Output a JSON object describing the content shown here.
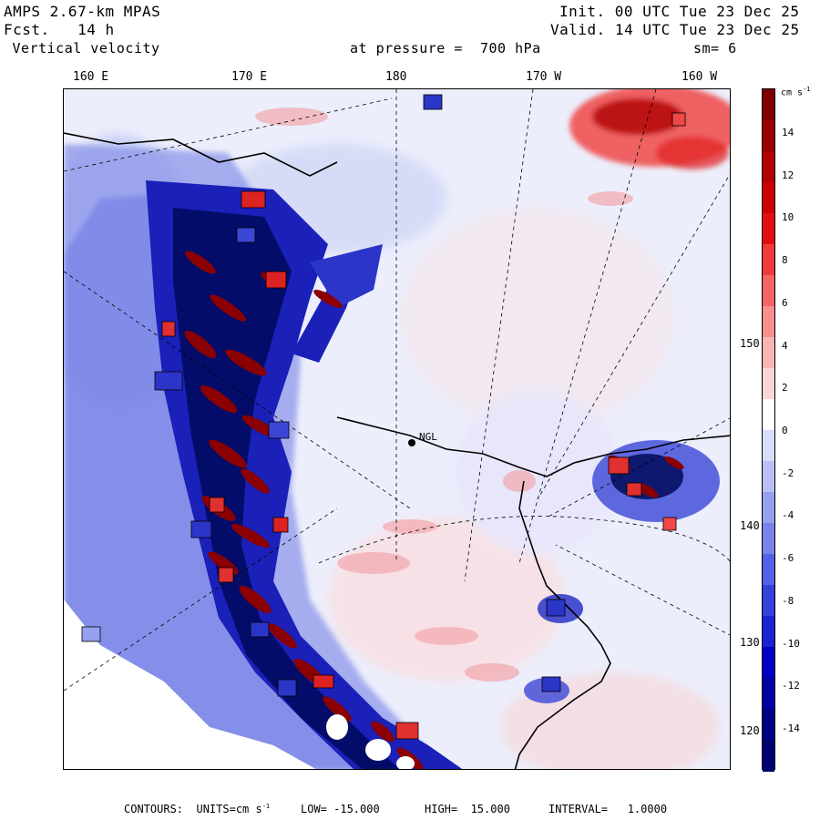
{
  "header": {
    "model": "AMPS 2.67-km MPAS",
    "forecast": "Fcst.   14 h",
    "field": " Vertical velocity",
    "level": "at pressure =  700 hPa",
    "init": "Init. 00 UTC Tue 23 Dec 25",
    "valid": "Valid. 14 UTC Tue 23 Dec 25",
    "smoothing": "sm= 6"
  },
  "longitude_labels": [
    "160 E",
    "170 E",
    "180",
    "170 W",
    "160 W"
  ],
  "latitude_labels": [
    "150 W",
    "140 W",
    "130 W",
    "120 W"
  ],
  "station_label": "NGL",
  "colorbar": {
    "unit": "cm s",
    "unit_exp": "-1",
    "ticks": [
      "14",
      "12",
      "10",
      "8",
      "6",
      "4",
      "2",
      "0",
      "-2",
      "-4",
      "-6",
      "-8",
      "-10",
      "-12",
      "-14"
    ],
    "colors": [
      "#7f0000",
      "#9a0000",
      "#b30000",
      "#cc0000",
      "#e01010",
      "#f03a3a",
      "#f56565",
      "#f88e8e",
      "#fbb4b4",
      "#fcd6d6",
      "#ffffff",
      "#d8dcfa",
      "#b9c0f5",
      "#97a0ef",
      "#7782ea",
      "#5461e4",
      "#3342dc",
      "#1a22d2",
      "#0000c4",
      "#0000a3",
      "#000087",
      "#000070"
    ]
  },
  "footer": {
    "contours": "CONTOURS:  UNITS=cm s",
    "units_exp": "-1",
    "low": "LOW= -15.000",
    "high": "HIGH=  15.000",
    "interval": "INTERVAL=   1.0000"
  }
}
